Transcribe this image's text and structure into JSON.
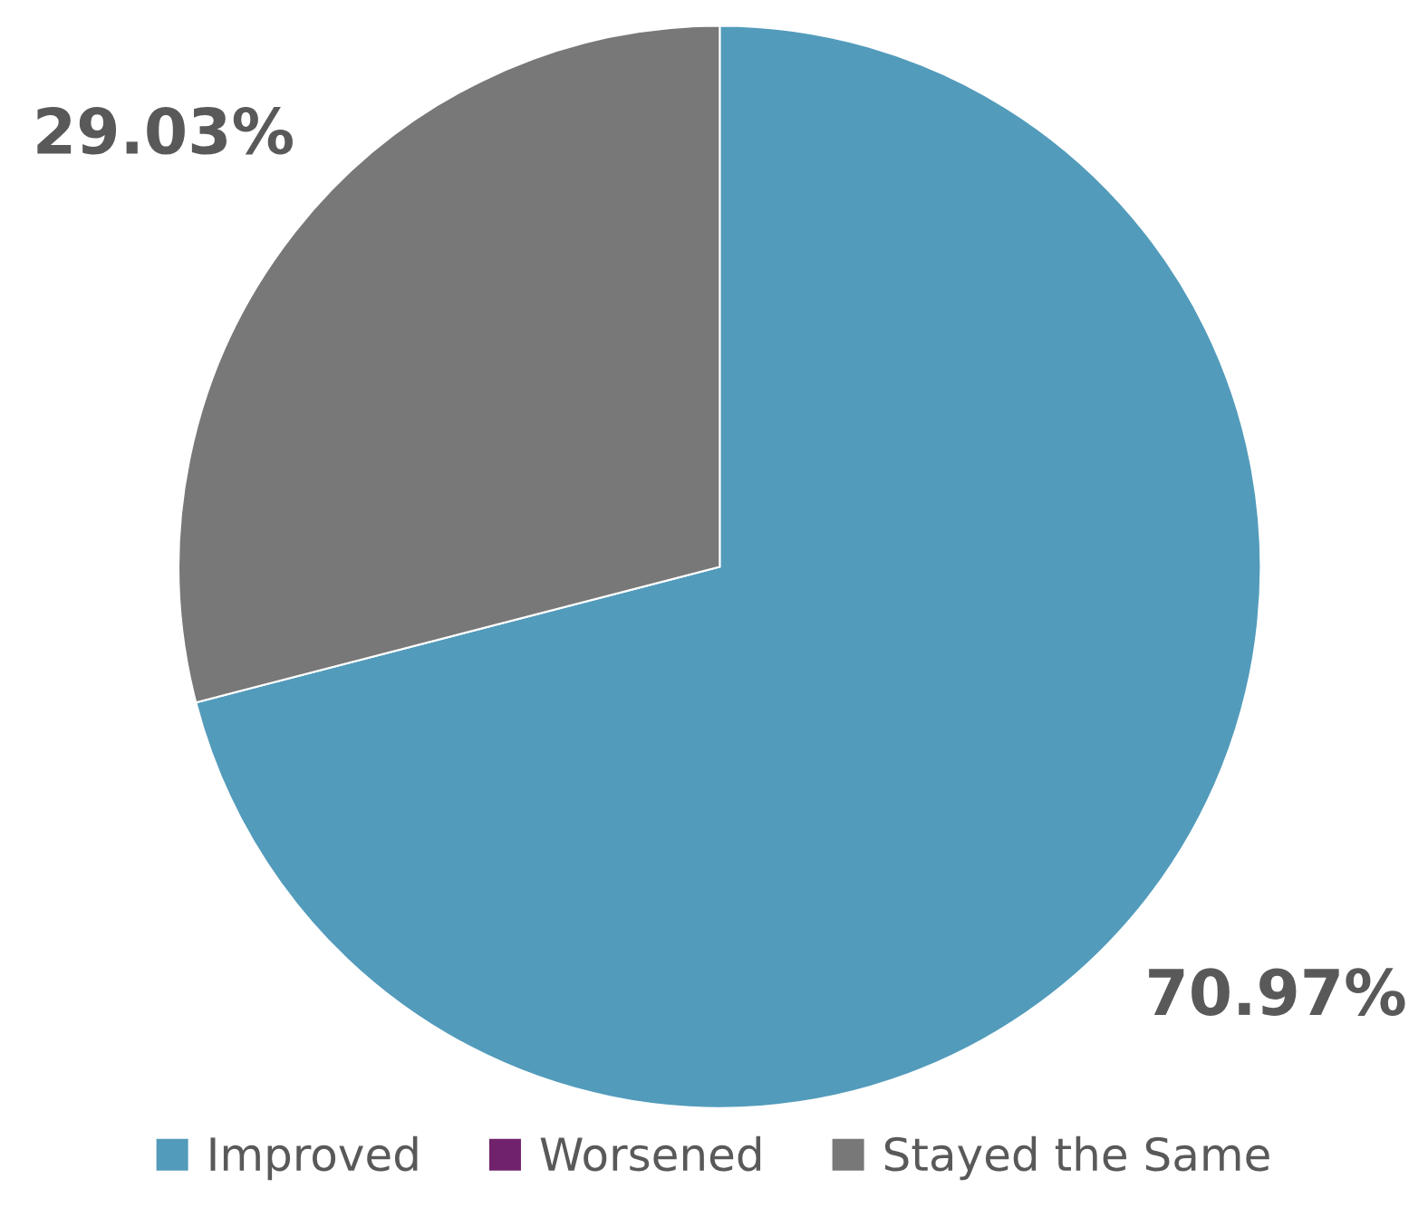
{
  "chart_data": {
    "type": "pie",
    "categories": [
      "Improved",
      "Worsened",
      "Stayed the Same"
    ],
    "values": [
      70.97,
      0,
      29.03
    ],
    "colors": [
      "#529bbb",
      "#71226c",
      "#787878"
    ],
    "value_labels": [
      "70.97%",
      null,
      "29.03%"
    ],
    "legend": "bottom"
  }
}
